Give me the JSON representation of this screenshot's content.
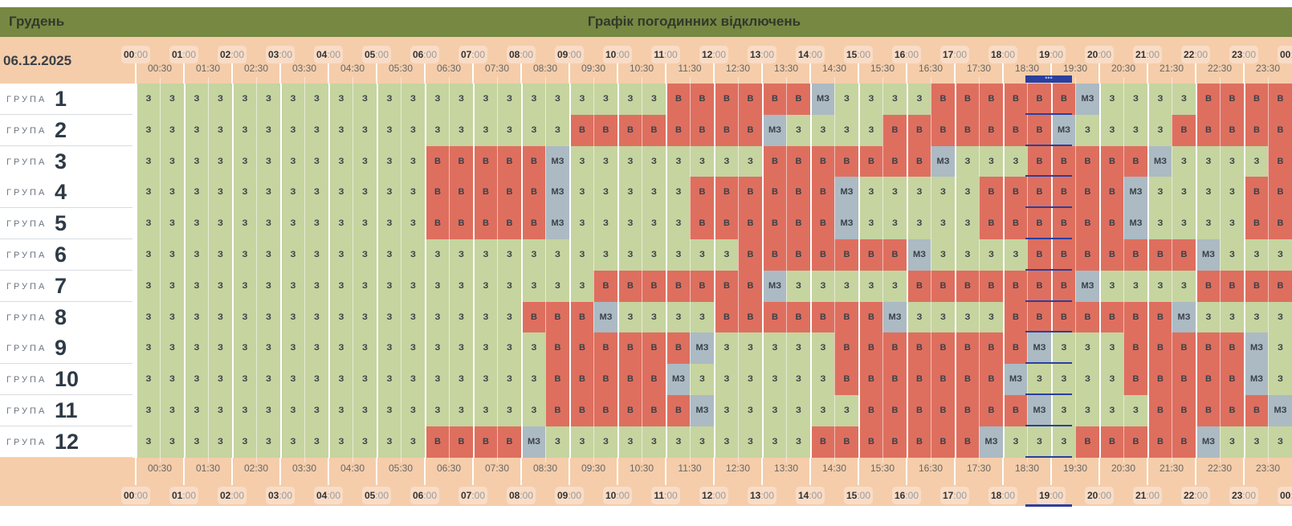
{
  "header": {
    "month": "Грудень",
    "title": "Графік погодинних відключень",
    "date": "06.12.2025",
    "now_marker": "•••"
  },
  "group_label": "ГРУПА",
  "legend": {
    "З": {
      "color": "#c6d4a0"
    },
    "В": {
      "color": "#de6f5f"
    },
    "МЗ": {
      "color": "#acbac3"
    }
  },
  "hours": [
    "00",
    "01",
    "02",
    "03",
    "04",
    "05",
    "06",
    "07",
    "08",
    "09",
    "10",
    "11",
    "12",
    "13",
    "14",
    "15",
    "16",
    "17",
    "18",
    "19",
    "20",
    "21",
    "22",
    "23",
    "00"
  ],
  "hour_suffix": ":00",
  "half_hours": [
    "00:30",
    "01:30",
    "02:30",
    "03:30",
    "04:30",
    "05:30",
    "06:30",
    "07:30",
    "08:30",
    "09:30",
    "10:30",
    "11:30",
    "12:30",
    "13:30",
    "14:30",
    "15:30",
    "16:30",
    "17:30",
    "18:30",
    "19:30",
    "20:30",
    "21:30",
    "22:30",
    "23:30"
  ],
  "current_slot_hours": "19:00-20:00",
  "groups": [
    {
      "number": "1",
      "runs": [
        [
          "З",
          22
        ],
        [
          "В",
          6
        ],
        [
          "МЗ",
          1
        ],
        [
          "З",
          4
        ],
        [
          "В",
          6
        ],
        [
          "МЗ",
          1
        ],
        [
          "З",
          4
        ],
        [
          "В",
          4
        ]
      ]
    },
    {
      "number": "2",
      "runs": [
        [
          "З",
          18
        ],
        [
          "В",
          8
        ],
        [
          "МЗ",
          1
        ],
        [
          "З",
          4
        ],
        [
          "В",
          7
        ],
        [
          "МЗ",
          1
        ],
        [
          "З",
          4
        ],
        [
          "В",
          5
        ]
      ]
    },
    {
      "number": "3",
      "runs": [
        [
          "З",
          12
        ],
        [
          "В",
          5
        ],
        [
          "МЗ",
          1
        ],
        [
          "З",
          8
        ],
        [
          "В",
          7
        ],
        [
          "МЗ",
          1
        ],
        [
          "З",
          3
        ],
        [
          "В",
          5
        ],
        [
          "МЗ",
          1
        ],
        [
          "З",
          4
        ],
        [
          "В",
          1
        ]
      ]
    },
    {
      "number": "4",
      "runs": [
        [
          "З",
          12
        ],
        [
          "В",
          5
        ],
        [
          "МЗ",
          1
        ],
        [
          "З",
          5
        ],
        [
          "В",
          6
        ],
        [
          "МЗ",
          1
        ],
        [
          "З",
          5
        ],
        [
          "В",
          6
        ],
        [
          "МЗ",
          1
        ],
        [
          "З",
          4
        ],
        [
          "В",
          2
        ]
      ]
    },
    {
      "number": "5",
      "runs": [
        [
          "З",
          12
        ],
        [
          "В",
          5
        ],
        [
          "МЗ",
          1
        ],
        [
          "З",
          5
        ],
        [
          "В",
          6
        ],
        [
          "МЗ",
          1
        ],
        [
          "З",
          5
        ],
        [
          "В",
          6
        ],
        [
          "МЗ",
          1
        ],
        [
          "З",
          4
        ],
        [
          "В",
          2
        ]
      ]
    },
    {
      "number": "6",
      "runs": [
        [
          "З",
          25
        ],
        [
          "В",
          7
        ],
        [
          "МЗ",
          1
        ],
        [
          "З",
          4
        ],
        [
          "В",
          7
        ],
        [
          "МЗ",
          1
        ],
        [
          "З",
          3
        ]
      ]
    },
    {
      "number": "7",
      "runs": [
        [
          "З",
          19
        ],
        [
          "В",
          7
        ],
        [
          "МЗ",
          1
        ],
        [
          "З",
          5
        ],
        [
          "В",
          7
        ],
        [
          "МЗ",
          1
        ],
        [
          "З",
          4
        ],
        [
          "В",
          4
        ]
      ]
    },
    {
      "number": "8",
      "runs": [
        [
          "З",
          16
        ],
        [
          "В",
          3
        ],
        [
          "МЗ",
          1
        ],
        [
          "З",
          4
        ],
        [
          "В",
          7
        ],
        [
          "МЗ",
          1
        ],
        [
          "З",
          4
        ],
        [
          "В",
          7
        ],
        [
          "МЗ",
          1
        ],
        [
          "З",
          4
        ]
      ]
    },
    {
      "number": "9",
      "runs": [
        [
          "З",
          17
        ],
        [
          "В",
          6
        ],
        [
          "МЗ",
          1
        ],
        [
          "З",
          5
        ],
        [
          "В",
          8
        ],
        [
          "МЗ",
          1
        ],
        [
          "З",
          3
        ],
        [
          "В",
          5
        ],
        [
          "МЗ",
          1
        ],
        [
          "З",
          1
        ]
      ]
    },
    {
      "number": "10",
      "runs": [
        [
          "З",
          17
        ],
        [
          "В",
          5
        ],
        [
          "МЗ",
          1
        ],
        [
          "З",
          6
        ],
        [
          "В",
          7
        ],
        [
          "МЗ",
          1
        ],
        [
          "З",
          4
        ],
        [
          "В",
          5
        ],
        [
          "МЗ",
          1
        ],
        [
          "З",
          1
        ]
      ]
    },
    {
      "number": "11",
      "runs": [
        [
          "З",
          17
        ],
        [
          "В",
          6
        ],
        [
          "МЗ",
          1
        ],
        [
          "З",
          6
        ],
        [
          "В",
          7
        ],
        [
          "МЗ",
          1
        ],
        [
          "З",
          4
        ],
        [
          "В",
          5
        ],
        [
          "МЗ",
          1
        ]
      ]
    },
    {
      "number": "12",
      "runs": [
        [
          "З",
          12
        ],
        [
          "В",
          4
        ],
        [
          "МЗ",
          1
        ],
        [
          "З",
          11
        ],
        [
          "В",
          7
        ],
        [
          "МЗ",
          1
        ],
        [
          "З",
          3
        ],
        [
          "В",
          5
        ],
        [
          "МЗ",
          1
        ],
        [
          "З",
          3
        ]
      ]
    }
  ]
}
